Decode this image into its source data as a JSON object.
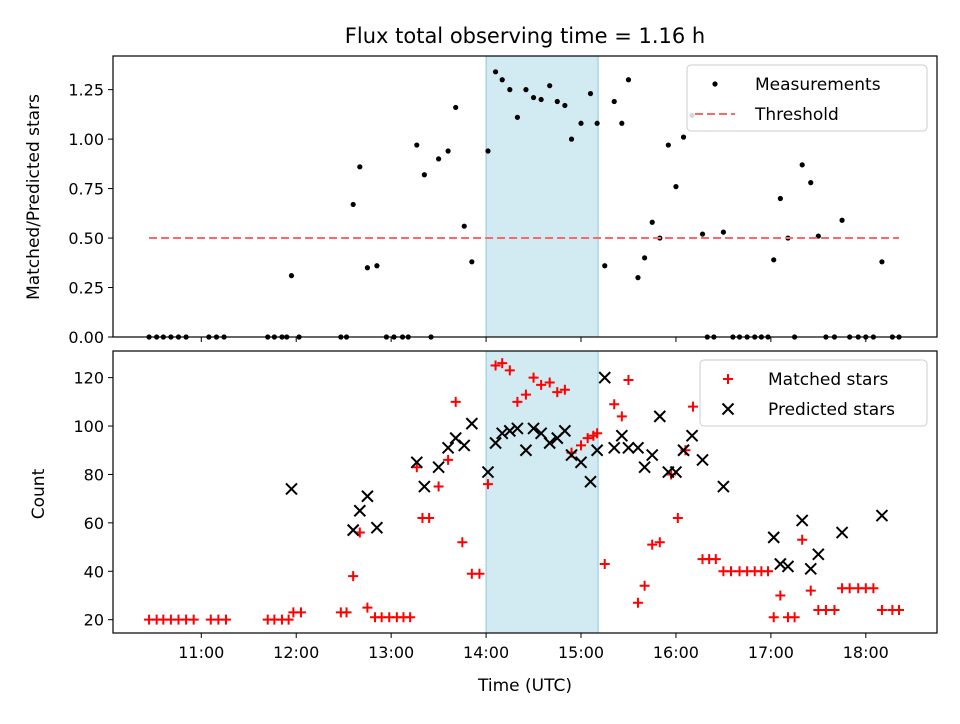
{
  "colors": {
    "measurement": "#000000",
    "threshold": "#ff6666",
    "matched": "#ff0000",
    "predicted": "#000000",
    "shade": "#add8e6"
  },
  "chart_data": [
    {
      "type": "scatter",
      "title": "Flux total observing time = 1.16 h",
      "xlabel": "",
      "ylabel": "Matched/Predicted stars",
      "x_unit": "hours (UTC)",
      "xlim": [
        10.07,
        18.75
      ],
      "ylim": [
        0,
        1.42
      ],
      "yticks": [
        "0.00",
        "0.25",
        "0.50",
        "0.75",
        "1.00",
        "1.25"
      ],
      "ytick_values": [
        0,
        0.25,
        0.5,
        0.75,
        1.0,
        1.25
      ],
      "xtick_values": [
        11,
        12,
        13,
        14,
        15,
        16,
        17,
        18
      ],
      "shaded_interval": [
        14.0,
        15.18
      ],
      "legend_position": "top-right",
      "series": [
        {
          "name": "Measurements",
          "marker": "dot",
          "points": [
            [
              10.45,
              0
            ],
            [
              10.53,
              0
            ],
            [
              10.6,
              0
            ],
            [
              10.68,
              0
            ],
            [
              10.76,
              0
            ],
            [
              10.84,
              0
            ],
            [
              11.08,
              0
            ],
            [
              11.16,
              0
            ],
            [
              11.24,
              0
            ],
            [
              11.7,
              0
            ],
            [
              11.77,
              0
            ],
            [
              11.85,
              0
            ],
            [
              11.9,
              0
            ],
            [
              11.95,
              0.31
            ],
            [
              12.03,
              0
            ],
            [
              12.47,
              0
            ],
            [
              12.53,
              0
            ],
            [
              12.6,
              0.67
            ],
            [
              12.67,
              0.86
            ],
            [
              12.75,
              0.35
            ],
            [
              12.85,
              0.36
            ],
            [
              12.95,
              0
            ],
            [
              13.03,
              0
            ],
            [
              13.12,
              0
            ],
            [
              13.18,
              0
            ],
            [
              13.27,
              0.97
            ],
            [
              13.35,
              0.82
            ],
            [
              13.42,
              0
            ],
            [
              13.5,
              0.9
            ],
            [
              13.6,
              0.94
            ],
            [
              13.68,
              1.16
            ],
            [
              13.77,
              0.56
            ],
            [
              13.85,
              0.38
            ],
            [
              14.02,
              0.94
            ],
            [
              14.1,
              1.34
            ],
            [
              14.17,
              1.3
            ],
            [
              14.25,
              1.25
            ],
            [
              14.33,
              1.11
            ],
            [
              14.42,
              1.25
            ],
            [
              14.5,
              1.21
            ],
            [
              14.58,
              1.2
            ],
            [
              14.67,
              1.27
            ],
            [
              14.75,
              1.19
            ],
            [
              14.83,
              1.17
            ],
            [
              14.9,
              1.0
            ],
            [
              15.0,
              1.08
            ],
            [
              15.1,
              1.23
            ],
            [
              15.17,
              1.08
            ],
            [
              15.25,
              0.36
            ],
            [
              15.35,
              1.19
            ],
            [
              15.43,
              1.08
            ],
            [
              15.5,
              1.3
            ],
            [
              15.6,
              0.3
            ],
            [
              15.67,
              0.4
            ],
            [
              15.75,
              0.58
            ],
            [
              15.83,
              0.5
            ],
            [
              15.92,
              0.97
            ],
            [
              16.0,
              0.76
            ],
            [
              16.08,
              1.01
            ],
            [
              16.17,
              1.12
            ],
            [
              16.28,
              0.52
            ],
            [
              16.33,
              0
            ],
            [
              16.4,
              0
            ],
            [
              16.5,
              0.53
            ],
            [
              16.6,
              0
            ],
            [
              16.67,
              0
            ],
            [
              16.75,
              0
            ],
            [
              16.83,
              0
            ],
            [
              16.9,
              0
            ],
            [
              16.97,
              0
            ],
            [
              17.03,
              0.39
            ],
            [
              17.1,
              0.7
            ],
            [
              17.18,
              0.5
            ],
            [
              17.25,
              0
            ],
            [
              17.33,
              0.87
            ],
            [
              17.42,
              0.78
            ],
            [
              17.5,
              0.51
            ],
            [
              17.58,
              0
            ],
            [
              17.67,
              0
            ],
            [
              17.75,
              0.59
            ],
            [
              17.83,
              0
            ],
            [
              17.92,
              0
            ],
            [
              18.0,
              0
            ],
            [
              18.08,
              0
            ],
            [
              18.17,
              0.38
            ],
            [
              18.28,
              0
            ],
            [
              18.35,
              0
            ]
          ]
        },
        {
          "name": "Threshold",
          "marker": "dashed-line",
          "points": [
            [
              10.45,
              0.5
            ],
            [
              18.35,
              0.5
            ]
          ]
        }
      ]
    },
    {
      "type": "scatter",
      "title": "",
      "xlabel": "Time (UTC)",
      "ylabel": "Count",
      "x_unit": "hours (UTC)",
      "xlim": [
        10.07,
        18.75
      ],
      "ylim": [
        14.5,
        131
      ],
      "yticks": [
        "20",
        "40",
        "60",
        "80",
        "100",
        "120"
      ],
      "ytick_values": [
        20,
        40,
        60,
        80,
        100,
        120
      ],
      "xticks": [
        "11:00",
        "12:00",
        "13:00",
        "14:00",
        "15:00",
        "16:00",
        "17:00",
        "18:00"
      ],
      "xtick_values": [
        11,
        12,
        13,
        14,
        15,
        16,
        17,
        18
      ],
      "shaded_interval": [
        14.0,
        15.18
      ],
      "legend_position": "top-right",
      "series": [
        {
          "name": "Matched stars",
          "marker": "plus",
          "points": [
            [
              10.45,
              20
            ],
            [
              10.53,
              20
            ],
            [
              10.6,
              20
            ],
            [
              10.68,
              20
            ],
            [
              10.76,
              20
            ],
            [
              10.84,
              20
            ],
            [
              10.92,
              20
            ],
            [
              11.1,
              20
            ],
            [
              11.18,
              20
            ],
            [
              11.26,
              20
            ],
            [
              11.7,
              20
            ],
            [
              11.77,
              20
            ],
            [
              11.85,
              20
            ],
            [
              11.92,
              20
            ],
            [
              11.97,
              23
            ],
            [
              12.05,
              23
            ],
            [
              12.47,
              23
            ],
            [
              12.53,
              23
            ],
            [
              12.6,
              38
            ],
            [
              12.67,
              56
            ],
            [
              12.75,
              25
            ],
            [
              12.83,
              21
            ],
            [
              12.9,
              21
            ],
            [
              12.98,
              21
            ],
            [
              13.06,
              21
            ],
            [
              13.13,
              21
            ],
            [
              13.2,
              21
            ],
            [
              13.27,
              83
            ],
            [
              13.33,
              62
            ],
            [
              13.4,
              62
            ],
            [
              13.5,
              75
            ],
            [
              13.6,
              86
            ],
            [
              13.68,
              110
            ],
            [
              13.75,
              52
            ],
            [
              13.85,
              39
            ],
            [
              13.93,
              39
            ],
            [
              14.02,
              76
            ],
            [
              14.1,
              125
            ],
            [
              14.17,
              126
            ],
            [
              14.25,
              123
            ],
            [
              14.33,
              110
            ],
            [
              14.42,
              113
            ],
            [
              14.5,
              120
            ],
            [
              14.58,
              117
            ],
            [
              14.67,
              118
            ],
            [
              14.75,
              114
            ],
            [
              14.83,
              115
            ],
            [
              14.9,
              89
            ],
            [
              15.0,
              92
            ],
            [
              15.07,
              95
            ],
            [
              15.13,
              96
            ],
            [
              15.17,
              97
            ],
            [
              15.25,
              43
            ],
            [
              15.35,
              109
            ],
            [
              15.43,
              104
            ],
            [
              15.5,
              119
            ],
            [
              15.6,
              27
            ],
            [
              15.67,
              34
            ],
            [
              15.75,
              51
            ],
            [
              15.83,
              52
            ],
            [
              15.95,
              80
            ],
            [
              16.02,
              62
            ],
            [
              16.1,
              90
            ],
            [
              16.18,
              108
            ],
            [
              16.28,
              45
            ],
            [
              16.35,
              45
            ],
            [
              16.42,
              45
            ],
            [
              16.5,
              40
            ],
            [
              16.58,
              40
            ],
            [
              16.67,
              40
            ],
            [
              16.75,
              40
            ],
            [
              16.83,
              40
            ],
            [
              16.9,
              40
            ],
            [
              16.97,
              40
            ],
            [
              17.03,
              21
            ],
            [
              17.1,
              30
            ],
            [
              17.18,
              21
            ],
            [
              17.25,
              21
            ],
            [
              17.33,
              53
            ],
            [
              17.42,
              32
            ],
            [
              17.5,
              24
            ],
            [
              17.58,
              24
            ],
            [
              17.67,
              24
            ],
            [
              17.75,
              33
            ],
            [
              17.83,
              33
            ],
            [
              17.92,
              33
            ],
            [
              18.0,
              33
            ],
            [
              18.08,
              33
            ],
            [
              18.17,
              24
            ],
            [
              18.28,
              24
            ],
            [
              18.35,
              24
            ]
          ]
        },
        {
          "name": "Predicted stars",
          "marker": "x",
          "points": [
            [
              11.95,
              74
            ],
            [
              12.6,
              57
            ],
            [
              12.67,
              65
            ],
            [
              12.75,
              71
            ],
            [
              12.85,
              58
            ],
            [
              13.27,
              85
            ],
            [
              13.35,
              75
            ],
            [
              13.5,
              83
            ],
            [
              13.6,
              91
            ],
            [
              13.68,
              95
            ],
            [
              13.77,
              92
            ],
            [
              13.85,
              101
            ],
            [
              14.02,
              81
            ],
            [
              14.1,
              93
            ],
            [
              14.17,
              97
            ],
            [
              14.25,
              98
            ],
            [
              14.33,
              99
            ],
            [
              14.42,
              90
            ],
            [
              14.5,
              99
            ],
            [
              14.58,
              97
            ],
            [
              14.67,
              93
            ],
            [
              14.75,
              95
            ],
            [
              14.83,
              98
            ],
            [
              14.9,
              88
            ],
            [
              15.0,
              85
            ],
            [
              15.1,
              77
            ],
            [
              15.17,
              90
            ],
            [
              15.25,
              120
            ],
            [
              15.35,
              91
            ],
            [
              15.43,
              96
            ],
            [
              15.5,
              91
            ],
            [
              15.6,
              91
            ],
            [
              15.67,
              83
            ],
            [
              15.75,
              88
            ],
            [
              15.83,
              104
            ],
            [
              15.92,
              81
            ],
            [
              16.0,
              81
            ],
            [
              16.08,
              90
            ],
            [
              16.17,
              96
            ],
            [
              16.28,
              86
            ],
            [
              16.5,
              75
            ],
            [
              17.03,
              54
            ],
            [
              17.1,
              43
            ],
            [
              17.18,
              42
            ],
            [
              17.33,
              61
            ],
            [
              17.42,
              41
            ],
            [
              17.5,
              47
            ],
            [
              17.75,
              56
            ],
            [
              18.17,
              63
            ]
          ]
        }
      ]
    }
  ]
}
